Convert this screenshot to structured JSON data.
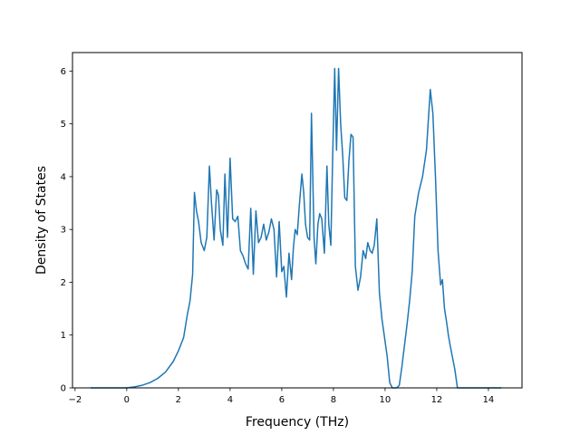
{
  "chart_data": {
    "type": "line",
    "title": "",
    "xlabel": "Frequency (THz)",
    "ylabel": "Density of States",
    "xlim": [
      -2.1,
      15.3
    ],
    "ylim": [
      0,
      6.35
    ],
    "xticks": [
      -2,
      0,
      2,
      4,
      6,
      8,
      10,
      12,
      14
    ],
    "yticks": [
      0,
      1,
      2,
      3,
      4,
      5,
      6
    ],
    "xtick_labels": [
      "−2",
      "0",
      "2",
      "4",
      "6",
      "8",
      "10",
      "12",
      "14"
    ],
    "ytick_labels": [
      "0",
      "1",
      "2",
      "3",
      "4",
      "5",
      "6"
    ],
    "grid": false,
    "series": [
      {
        "color": "#1f77b4",
        "x": [
          -1.4,
          -1.0,
          -0.5,
          0.0,
          0.3,
          0.6,
          0.9,
          1.2,
          1.5,
          1.8,
          2.0,
          2.2,
          2.35,
          2.45,
          2.55,
          2.62,
          2.7,
          2.78,
          2.88,
          3.0,
          3.1,
          3.2,
          3.28,
          3.38,
          3.48,
          3.55,
          3.62,
          3.72,
          3.8,
          3.9,
          4.0,
          4.1,
          4.2,
          4.3,
          4.4,
          4.5,
          4.6,
          4.7,
          4.8,
          4.9,
          5.0,
          5.1,
          5.2,
          5.3,
          5.4,
          5.5,
          5.6,
          5.7,
          5.8,
          5.9,
          6.0,
          6.08,
          6.18,
          6.28,
          6.38,
          6.45,
          6.52,
          6.6,
          6.68,
          6.78,
          6.85,
          6.92,
          7.0,
          7.08,
          7.15,
          7.25,
          7.32,
          7.4,
          7.47,
          7.55,
          7.65,
          7.75,
          7.82,
          7.9,
          7.97,
          8.05,
          8.12,
          8.2,
          8.28,
          8.36,
          8.44,
          8.52,
          8.6,
          8.68,
          8.76,
          8.85,
          8.95,
          9.05,
          9.15,
          9.25,
          9.33,
          9.42,
          9.5,
          9.58,
          9.68,
          9.78,
          9.88,
          9.98,
          10.08,
          10.18,
          10.28,
          10.35,
          10.45,
          10.55,
          10.65,
          10.75,
          10.85,
          10.95,
          11.05,
          11.15,
          11.3,
          11.45,
          11.6,
          11.75,
          11.85,
          11.95,
          12.05,
          12.15,
          12.22,
          12.3,
          12.38,
          12.45,
          12.52,
          12.6,
          12.7,
          12.8,
          12.9,
          13.0,
          13.1,
          13.2,
          13.3,
          13.5,
          14.0,
          14.5
        ],
        "y": [
          0.0,
          0.0,
          0.0,
          0.0,
          0.02,
          0.05,
          0.1,
          0.18,
          0.3,
          0.5,
          0.7,
          0.95,
          1.4,
          1.65,
          2.15,
          3.7,
          3.35,
          3.15,
          2.75,
          2.6,
          2.85,
          4.2,
          3.5,
          2.8,
          3.75,
          3.65,
          3.0,
          2.7,
          4.05,
          2.85,
          4.35,
          3.2,
          3.15,
          3.25,
          2.6,
          2.5,
          2.35,
          2.25,
          3.4,
          2.15,
          3.35,
          2.75,
          2.85,
          3.1,
          2.8,
          2.95,
          3.2,
          3.0,
          2.1,
          3.15,
          2.2,
          2.3,
          1.72,
          2.55,
          2.05,
          2.65,
          3.0,
          2.9,
          3.45,
          4.05,
          3.7,
          3.1,
          2.85,
          2.8,
          5.2,
          2.85,
          2.35,
          3.1,
          3.3,
          3.2,
          2.55,
          4.2,
          3.1,
          2.7,
          4.35,
          6.05,
          4.5,
          6.05,
          5.0,
          4.4,
          3.6,
          3.55,
          4.3,
          4.8,
          4.75,
          2.3,
          1.85,
          2.1,
          2.6,
          2.45,
          2.75,
          2.6,
          2.55,
          2.7,
          3.2,
          1.8,
          1.3,
          0.95,
          0.6,
          0.1,
          0.0,
          0.0,
          0.0,
          0.05,
          0.4,
          0.8,
          1.2,
          1.65,
          2.2,
          3.25,
          3.7,
          4.0,
          4.5,
          5.65,
          5.2,
          4.0,
          2.6,
          1.95,
          2.05,
          1.5,
          1.25,
          1.0,
          0.8,
          0.6,
          0.35,
          0.0,
          0.0,
          0.0,
          0.0,
          0.0,
          0.0,
          0.0,
          0.0,
          0.0
        ]
      }
    ]
  }
}
